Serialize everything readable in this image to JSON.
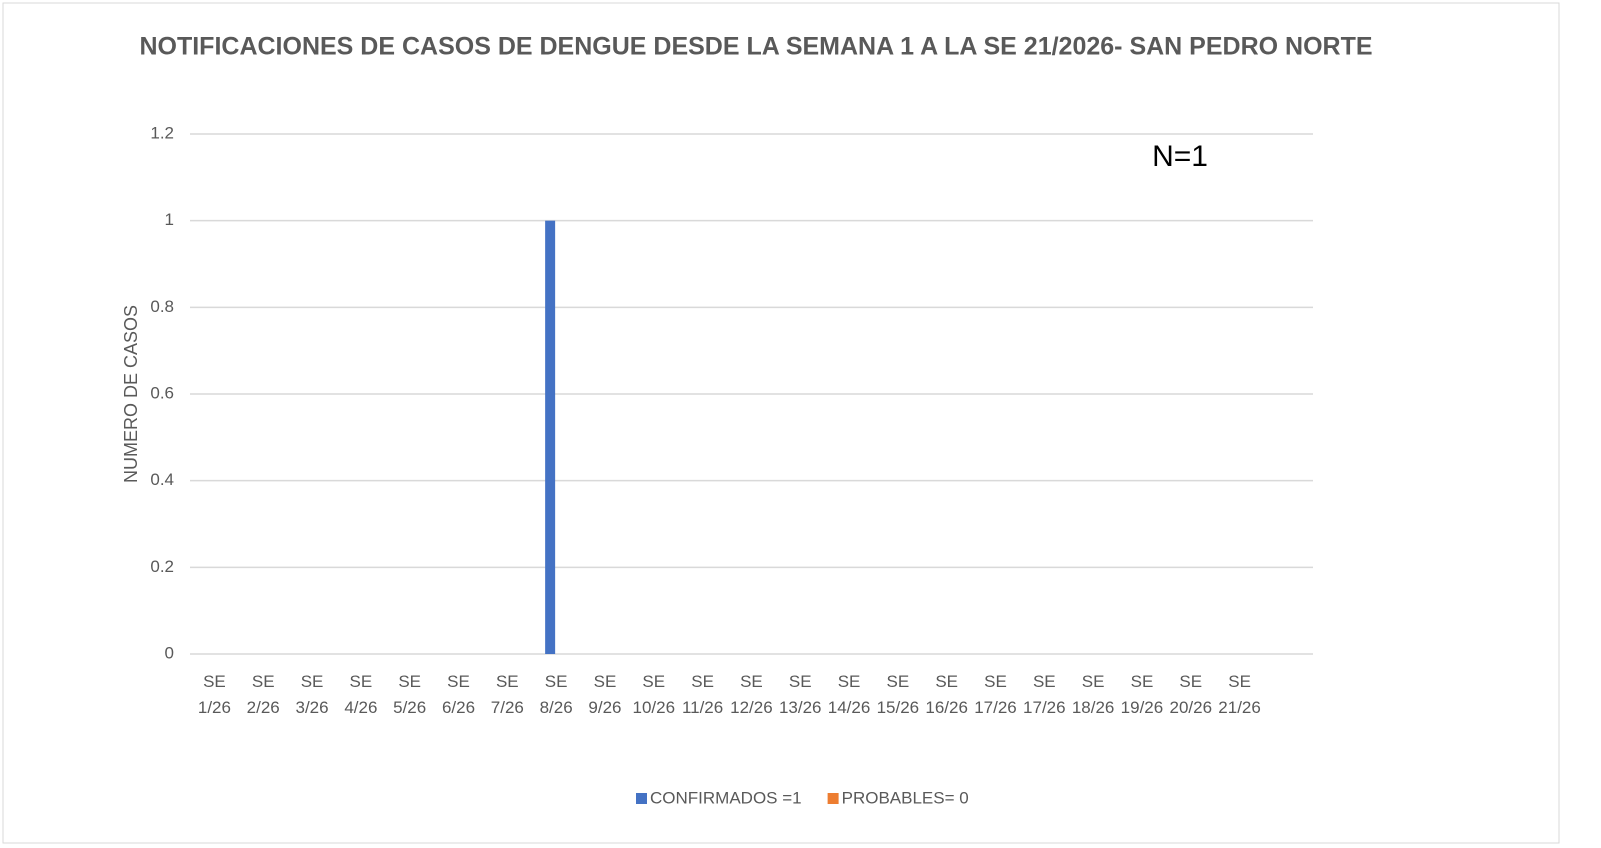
{
  "chart_data": {
    "type": "bar",
    "title": "NOTIFICACIONES DE CASOS DE  DENGUE DESDE LA SEMANA 1 A LA SE 21/2026- SAN PEDRO NORTE",
    "ylabel": "NUMERO DE CASOS",
    "annotation": "N=1",
    "categories": [
      "SE 1/26",
      "SE 2/26",
      "SE 3/26",
      "SE 4/26",
      "SE 5/26",
      "SE 6/26",
      "SE 7/26",
      "SE 8/26",
      "SE 9/26",
      "SE 10/26",
      "SE 11/26",
      "SE 12/26",
      "SE 13/26",
      "SE 14/26",
      "SE 15/26",
      "SE 16/26",
      "SE 17/26",
      "SE 17/26",
      "SE 18/26",
      "SE 19/26",
      "SE 20/26",
      "SE 21/26"
    ],
    "series": [
      {
        "name": "CONFIRMADOS =1",
        "color": "#4472c4",
        "values": [
          0,
          0,
          0,
          0,
          0,
          0,
          0,
          1,
          0,
          0,
          0,
          0,
          0,
          0,
          0,
          0,
          0,
          0,
          0,
          0,
          0,
          0
        ]
      },
      {
        "name": "PROBABLES= 0",
        "color": "#ed7d31",
        "values": [
          0,
          0,
          0,
          0,
          0,
          0,
          0,
          0,
          0,
          0,
          0,
          0,
          0,
          0,
          0,
          0,
          0,
          0,
          0,
          0,
          0,
          0
        ]
      }
    ],
    "ylim": [
      0,
      1.2
    ],
    "yticks": [
      0,
      0.2,
      0.4,
      0.6,
      0.8,
      1,
      1.2
    ],
    "grid": true,
    "legend": "bottom"
  }
}
